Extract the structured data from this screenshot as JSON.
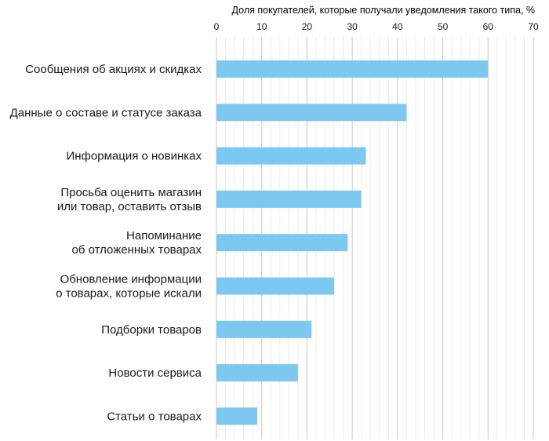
{
  "chart_data": {
    "type": "bar",
    "orientation": "horizontal",
    "title": "Доля покупателей, которые получали уведомления такого типа, %",
    "xlim": [
      0,
      70
    ],
    "x_ticks": [
      "0",
      "10",
      "20",
      "30",
      "40",
      "50",
      "60",
      "70"
    ],
    "grid": true,
    "bar_color": "#7cc8f0",
    "categories": [
      [
        "Сообщения об акциях и скидках"
      ],
      [
        "Данные о составе и статусе заказа"
      ],
      [
        "Информация о новинках"
      ],
      [
        "Просьба оценить магазин",
        "или товар, оставить отзыв"
      ],
      [
        "Напоминание",
        "об отложенных товарах"
      ],
      [
        "Обновление информации",
        "о товарах, которые искали"
      ],
      [
        "Подборки товаров"
      ],
      [
        "Новости сервиса"
      ],
      [
        "Статьи о товарах"
      ]
    ],
    "values": [
      60,
      42,
      33,
      32,
      29,
      26,
      21,
      18,
      9
    ]
  }
}
